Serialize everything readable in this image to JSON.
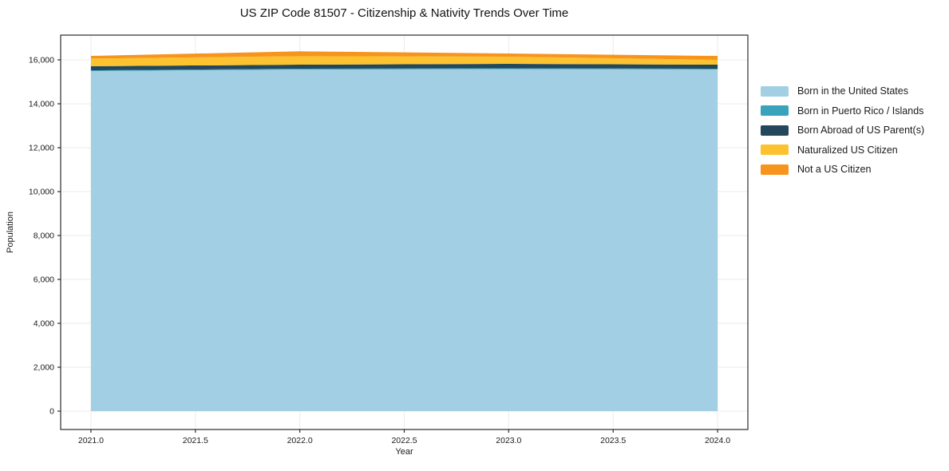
{
  "chart_data": {
    "type": "area",
    "stacked": true,
    "title": "US ZIP Code 81507 - Citizenship & Nativity Trends Over Time",
    "xlabel": "Year",
    "ylabel": "Population",
    "x": [
      2021,
      2022,
      2023,
      2024
    ],
    "series": [
      {
        "name": "Born in the United States",
        "color": "#A3CFE5",
        "values": [
          15490,
          15560,
          15580,
          15565
        ]
      },
      {
        "name": "Born in Puerto Rico / Islands",
        "color": "#39A3BB",
        "values": [
          35,
          40,
          40,
          35
        ]
      },
      {
        "name": "Born Abroad of US Parent(s)",
        "color": "#23475C",
        "values": [
          185,
          180,
          200,
          180
        ]
      },
      {
        "name": "Naturalized US Citizen",
        "color": "#FCC22F",
        "values": [
          350,
          390,
          325,
          220
        ]
      },
      {
        "name": "Not a US Citizen",
        "color": "#F7941E",
        "values": [
          120,
          220,
          145,
          180
        ]
      }
    ],
    "xticks": [
      2021.0,
      2021.5,
      2022.0,
      2022.5,
      2023.0,
      2023.5,
      2024.0
    ],
    "yticks": [
      0,
      2000,
      4000,
      6000,
      8000,
      10000,
      12000,
      14000,
      16000
    ],
    "xlim": [
      2020.855,
      2024.145
    ],
    "ylim": [
      -836,
      17127
    ],
    "grid": true,
    "legend_position": "right",
    "colors": {
      "axis": "#2b2b2b",
      "grid": "#ebebeb",
      "text": "#1a1a1a",
      "background": "#ffffff"
    }
  }
}
